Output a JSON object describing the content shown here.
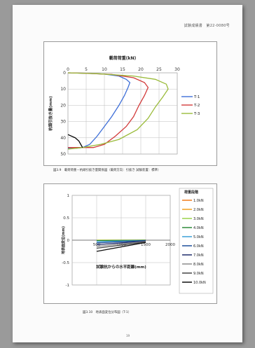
{
  "document": {
    "header": "試験成績書　第22-0080号",
    "footer": "19"
  },
  "captions": {
    "fig1": "図3.9　載荷荷重－杭頭引抜き量関係図（載荷方向：引抜き 試験装置：標準）",
    "fig2": "図3.10　地表面変位分布図（T-1）"
  },
  "chart_data": [
    {
      "type": "line",
      "title": "載荷荷重(kN)",
      "xlabel": "載荷荷重(kN)",
      "ylabel": "杭頭引抜き量(mm)",
      "xlim": [
        0,
        30
      ],
      "ylim": [
        0,
        50
      ],
      "x_ticks": [
        0,
        5,
        10,
        15,
        20,
        25,
        30
      ],
      "y_ticks": [
        0,
        10,
        20,
        30,
        40,
        50
      ],
      "y_inverted": true,
      "x_axis_top": true,
      "grid": true,
      "legend_position": "right",
      "series": [
        {
          "name": "T-1",
          "color": "#3e6fd8",
          "points": [
            [
              0,
              0
            ],
            [
              5,
              0.3
            ],
            [
              10,
              0.8
            ],
            [
              14,
              2
            ],
            [
              16,
              4
            ],
            [
              17,
              6
            ],
            [
              16.5,
              9
            ],
            [
              15.5,
              14
            ],
            [
              14,
              20
            ],
            [
              12,
              27
            ],
            [
              10,
              33
            ],
            [
              8,
              39
            ],
            [
              6,
              44
            ],
            [
              4,
              46
            ],
            [
              2,
              46.5
            ],
            [
              0,
              46.5
            ]
          ]
        },
        {
          "name": "T-2",
          "color": "#d23a3a",
          "points": [
            [
              0,
              0
            ],
            [
              5,
              0.3
            ],
            [
              12,
              1
            ],
            [
              18,
              3
            ],
            [
              21,
              6
            ],
            [
              22,
              9
            ],
            [
              21,
              14
            ],
            [
              19.5,
              20
            ],
            [
              18,
              27
            ],
            [
              16,
              33
            ],
            [
              13,
              39
            ],
            [
              10,
              44
            ],
            [
              7,
              46
            ],
            [
              3,
              46
            ],
            [
              0,
              46
            ]
          ]
        },
        {
          "name": "T-3",
          "color": "#9abb3a",
          "points": [
            [
              0,
              0
            ],
            [
              8,
              0.5
            ],
            [
              18,
              2
            ],
            [
              24,
              4
            ],
            [
              27,
              7
            ],
            [
              27.5,
              10
            ],
            [
              26,
              15
            ],
            [
              24,
              21
            ],
            [
              22,
              28
            ],
            [
              19,
              35
            ],
            [
              14,
              41
            ],
            [
              9,
              44
            ],
            [
              4,
              46
            ],
            [
              0,
              47
            ]
          ]
        },
        {
          "name": "",
          "color": "#000000",
          "points": [
            [
              0,
              38
            ],
            [
              2,
              40
            ],
            [
              3,
              42
            ],
            [
              4,
              46
            ]
          ]
        }
      ]
    },
    {
      "type": "line",
      "title": "",
      "xlabel": "試験杭からの水平距離(mm)",
      "ylabel": "地表面変位(mm)",
      "xlim": [
        0,
        2000
      ],
      "ylim": [
        -1,
        1
      ],
      "x_ticks": [
        0,
        500,
        1000,
        1500,
        2000
      ],
      "y_ticks": [
        -1,
        -0.5,
        0,
        0.5,
        1
      ],
      "grid": true,
      "legend_title": "荷重段階",
      "legend_position": "right",
      "series": [
        {
          "name": "1.0kN",
          "color": "#f07a1a",
          "points": [
            [
              500,
              0
            ],
            [
              1500,
              0
            ]
          ]
        },
        {
          "name": "2.0kN",
          "color": "#f0a020",
          "points": [
            [
              500,
              0
            ],
            [
              1500,
              0
            ]
          ]
        },
        {
          "name": "3.0kN",
          "color": "#9bd24a",
          "points": [
            [
              500,
              0
            ],
            [
              1500,
              0
            ]
          ]
        },
        {
          "name": "4.0kN",
          "color": "#2f8a3a",
          "points": [
            [
              500,
              -0.01
            ],
            [
              1500,
              0
            ]
          ]
        },
        {
          "name": "5.0kN",
          "color": "#3aa0d8",
          "points": [
            [
              500,
              -0.03
            ],
            [
              1500,
              -0.01
            ]
          ]
        },
        {
          "name": "6.0kN",
          "color": "#1e4f9a",
          "points": [
            [
              500,
              -0.06
            ],
            [
              1500,
              -0.01
            ]
          ]
        },
        {
          "name": "7.0kN",
          "color": "#1e2a6a",
          "points": [
            [
              500,
              -0.1
            ],
            [
              1500,
              -0.02
            ]
          ]
        },
        {
          "name": "8.0kN",
          "color": "#8a8a8a",
          "points": [
            [
              500,
              -0.14
            ],
            [
              1500,
              -0.03
            ]
          ]
        },
        {
          "name": "9.0kN",
          "color": "#444444",
          "points": [
            [
              500,
              -0.18
            ],
            [
              1500,
              -0.04
            ]
          ]
        },
        {
          "name": "10.0kN",
          "color": "#111111",
          "points": [
            [
              500,
              -0.25
            ],
            [
              1500,
              -0.05
            ]
          ]
        }
      ]
    }
  ]
}
